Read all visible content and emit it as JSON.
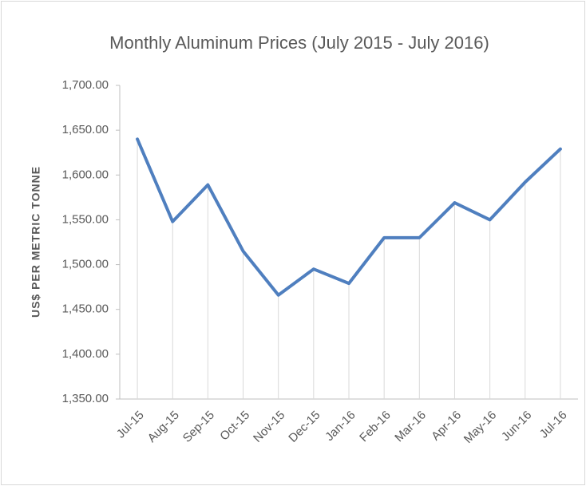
{
  "chart_data": {
    "type": "line",
    "title": "Monthly Aluminum Prices (July 2015 - July 2016)",
    "y_label": "US$ PER METRIC TONNE",
    "categories": [
      "Jul-15",
      "Aug-15",
      "Sep-15",
      "Oct-15",
      "Nov-15",
      "Dec-15",
      "Jan-16",
      "Feb-16",
      "Mar-16",
      "Apr-16",
      "May-16",
      "Jun-16",
      "Jul-16"
    ],
    "series": [
      {
        "name": "Aluminum",
        "color": "#4f7fbf",
        "values": [
          1640,
          1548,
          1589,
          1515,
          1466,
          1495,
          1479,
          1530,
          1530,
          1569,
          1550,
          1592,
          1629
        ]
      }
    ],
    "ylim": [
      1350,
      1700
    ],
    "yticks": [
      {
        "value": 1350,
        "label": "1,350.00"
      },
      {
        "value": 1400,
        "label": "1,400.00"
      },
      {
        "value": 1450,
        "label": "1,450.00"
      },
      {
        "value": 1500,
        "label": "1,500.00"
      },
      {
        "value": 1550,
        "label": "1,550.00"
      },
      {
        "value": 1600,
        "label": "1,600.00"
      },
      {
        "value": 1650,
        "label": "1,650.00"
      },
      {
        "value": 1700,
        "label": "1,700.00"
      }
    ],
    "drop_lines": true
  }
}
